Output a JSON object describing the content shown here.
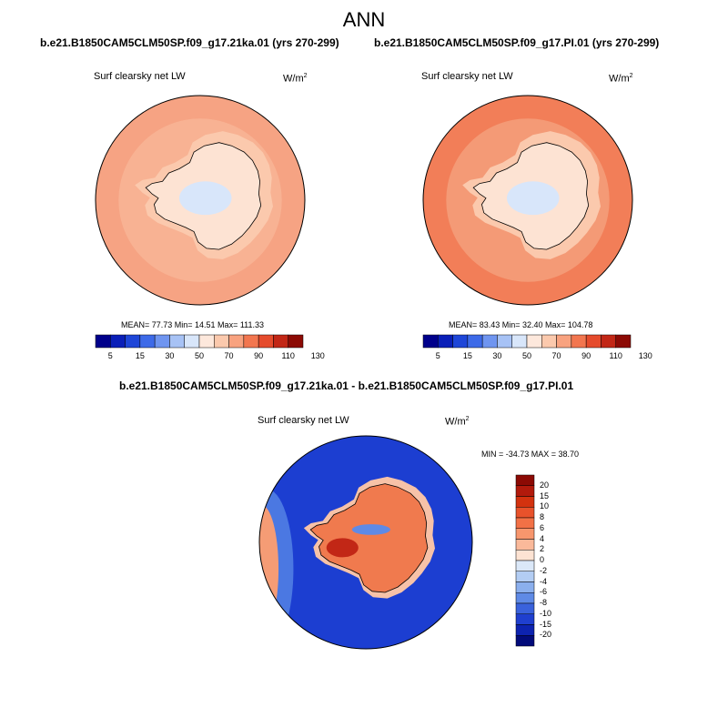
{
  "title": "ANN",
  "colors": {
    "scale": [
      "#00008b",
      "#0a1fb8",
      "#1e46d8",
      "#3d6ae8",
      "#6f95f0",
      "#a7c2f5",
      "#d8e6fa",
      "#fde8dc",
      "#fbc9ad",
      "#f8a27f",
      "#f2764f",
      "#e54b2c",
      "#c22716",
      "#8c0a04"
    ],
    "land": "#fde3d3",
    "ocean_a": "#f6a383",
    "ocean_b": "#f27e58",
    "diff_ocean": "#1c3ed1",
    "diff_land": "#f07a4e"
  },
  "chart_data": [
    {
      "type": "heatmap",
      "panel": "top-left",
      "case_title": "b.e21.B1850CAM5CLM50SP.f09_g17.21ka.01 (yrs 270-299)",
      "variable": "Surf clearsky net LW",
      "units_base": "W/m",
      "units_exp": "2",
      "stats_text": "MEAN=  77.73  Min=  14.51  Max= 111.33",
      "mean": 77.73,
      "min": 14.51,
      "max": 111.33,
      "colorbar_ticks": [
        "5",
        "15",
        "30",
        "50",
        "70",
        "90",
        "110",
        "130"
      ]
    },
    {
      "type": "heatmap",
      "panel": "top-right",
      "case_title": "b.e21.B1850CAM5CLM50SP.f09_g17.PI.01 (yrs 270-299)",
      "variable": "Surf clearsky net LW",
      "units_base": "W/m",
      "units_exp": "2",
      "stats_text": "MEAN=  83.43  Min=  32.40  Max= 104.78",
      "mean": 83.43,
      "min": 32.4,
      "max": 104.78,
      "colorbar_ticks": [
        "5",
        "15",
        "30",
        "50",
        "70",
        "90",
        "110",
        "130"
      ]
    },
    {
      "type": "heatmap",
      "panel": "bottom",
      "case_title": "b.e21.B1850CAM5CLM50SP.f09_g17.21ka.01 - b.e21.B1850CAM5CLM50SP.f09_g17.PI.01",
      "variable": "Surf clearsky net LW",
      "units_base": "W/m",
      "units_exp": "2",
      "stats_text": "MIN = -34.73 MAX =  38.70",
      "min": -34.73,
      "max": 38.7,
      "colorbar_ticks": [
        "20",
        "15",
        "10",
        "8",
        "6",
        "4",
        "2",
        "0",
        "-2",
        "-4",
        "-6",
        "-8",
        "-10",
        "-15",
        "-20"
      ],
      "colorbar_colors": [
        "#8c0a04",
        "#b21a0c",
        "#d3320f",
        "#e8522b",
        "#f27146",
        "#f7966d",
        "#fab99a",
        "#fde3d3",
        "#dbe8f8",
        "#b3cdf3",
        "#8bafed",
        "#5f8ae6",
        "#3a62dc",
        "#1f3fcf",
        "#0d23b0",
        "#020b7a"
      ]
    }
  ]
}
